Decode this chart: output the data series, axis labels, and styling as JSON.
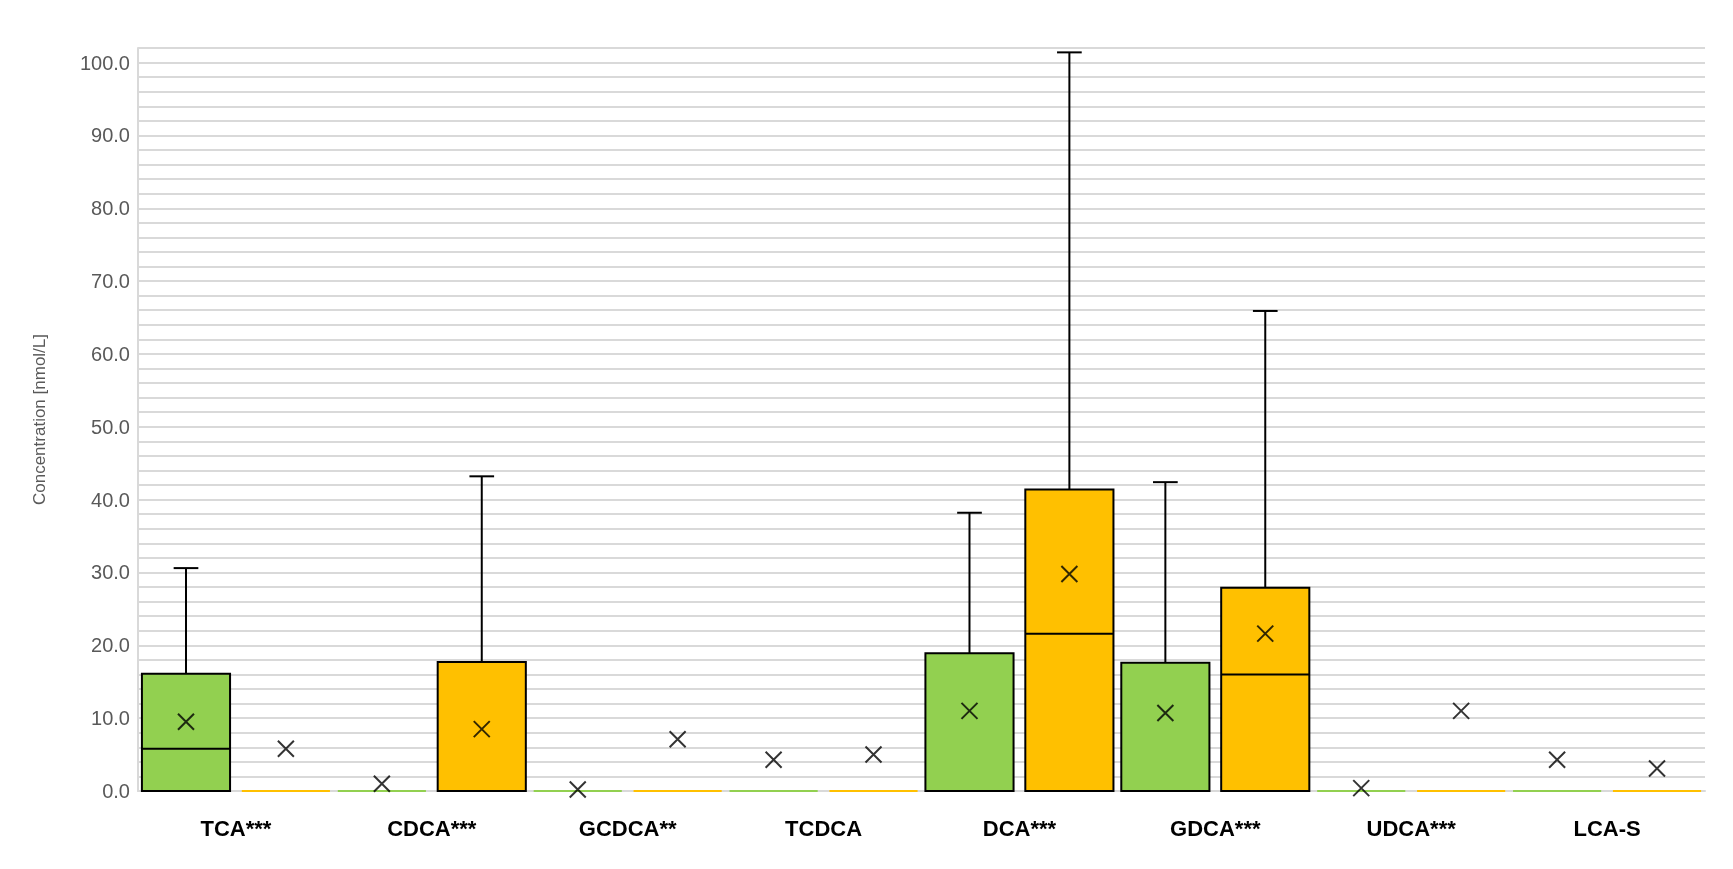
{
  "chart_data": {
    "type": "box",
    "ylabel": "Concentration [nmol/L]",
    "categories": [
      "TCA***",
      "CDCA***",
      "GCDCA**",
      "TCDCA",
      "DCA***",
      "GDCA***",
      "UDCA***",
      "LCA-S"
    ],
    "ylim": [
      0,
      102
    ],
    "yticks": [
      {
        "value": 0,
        "label": "0.0"
      },
      {
        "value": 2,
        "label": null
      },
      {
        "value": 4,
        "label": null
      },
      {
        "value": 6,
        "label": null
      },
      {
        "value": 8,
        "label": null
      },
      {
        "value": 10,
        "label": "10.0"
      },
      {
        "value": 12,
        "label": null
      },
      {
        "value": 14,
        "label": null
      },
      {
        "value": 16,
        "label": null
      },
      {
        "value": 18,
        "label": null
      },
      {
        "value": 20,
        "label": "20.0"
      },
      {
        "value": 22,
        "label": null
      },
      {
        "value": 24,
        "label": null
      },
      {
        "value": 26,
        "label": null
      },
      {
        "value": 28,
        "label": null
      },
      {
        "value": 30,
        "label": "30.0"
      },
      {
        "value": 32,
        "label": null
      },
      {
        "value": 34,
        "label": null
      },
      {
        "value": 36,
        "label": null
      },
      {
        "value": 38,
        "label": null
      },
      {
        "value": 40,
        "label": "40.0"
      },
      {
        "value": 42,
        "label": null
      },
      {
        "value": 44,
        "label": null
      },
      {
        "value": 46,
        "label": null
      },
      {
        "value": 48,
        "label": null
      },
      {
        "value": 50,
        "label": "50.0"
      },
      {
        "value": 52,
        "label": null
      },
      {
        "value": 54,
        "label": null
      },
      {
        "value": 56,
        "label": null
      },
      {
        "value": 58,
        "label": null
      },
      {
        "value": 60,
        "label": "60.0"
      },
      {
        "value": 62,
        "label": null
      },
      {
        "value": 64,
        "label": null
      },
      {
        "value": 66,
        "label": null
      },
      {
        "value": 68,
        "label": null
      },
      {
        "value": 70,
        "label": "70.0"
      },
      {
        "value": 72,
        "label": null
      },
      {
        "value": 74,
        "label": null
      },
      {
        "value": 76,
        "label": null
      },
      {
        "value": 78,
        "label": null
      },
      {
        "value": 80,
        "label": "80.0"
      },
      {
        "value": 82,
        "label": null
      },
      {
        "value": 84,
        "label": null
      },
      {
        "value": 86,
        "label": null
      },
      {
        "value": 88,
        "label": null
      },
      {
        "value": 90,
        "label": "90.0"
      },
      {
        "value": 92,
        "label": null
      },
      {
        "value": 94,
        "label": null
      },
      {
        "value": 96,
        "label": null
      },
      {
        "value": 98,
        "label": null
      },
      {
        "value": 100,
        "label": "100.0"
      },
      {
        "value": 102,
        "label": null
      }
    ],
    "grid": "y",
    "marker": "cross",
    "series": [
      {
        "color": "#92d050",
        "boxes": [
          {
            "low": 0,
            "q1": 0,
            "median": 5.8,
            "q3": 16.1,
            "high": 30.6,
            "mean": 9.5
          },
          {
            "low": 0,
            "q1": 0,
            "median": 0,
            "q3": 0,
            "high": 0,
            "mean": 1.0
          },
          {
            "low": 0,
            "q1": 0,
            "median": 0,
            "q3": 0,
            "high": 0,
            "mean": 0.2
          },
          {
            "low": 0,
            "q1": 0,
            "median": 0,
            "q3": 0,
            "high": 0,
            "mean": 4.3
          },
          {
            "low": 0,
            "q1": 0,
            "median": 0,
            "q3": 18.9,
            "high": 38.2,
            "mean": 11.0
          },
          {
            "low": 0,
            "q1": 0,
            "median": 0,
            "q3": 17.6,
            "high": 42.4,
            "mean": 10.7
          },
          {
            "low": 0,
            "q1": 0,
            "median": 0,
            "q3": 0,
            "high": 0,
            "mean": 0.4
          },
          {
            "low": 0,
            "q1": 0,
            "median": 0,
            "q3": 0,
            "high": 0,
            "mean": 4.3
          }
        ]
      },
      {
        "color": "#ffc000",
        "boxes": [
          {
            "low": 0,
            "q1": 0,
            "median": 0,
            "q3": 0,
            "high": 0,
            "mean": 5.8
          },
          {
            "low": 0,
            "q1": 0,
            "median": 0,
            "q3": 17.7,
            "high": 43.2,
            "mean": 8.5
          },
          {
            "low": 0,
            "q1": 0,
            "median": 0,
            "q3": 0,
            "high": 0,
            "mean": 7.1
          },
          {
            "low": 0,
            "q1": 0,
            "median": 0,
            "q3": 0,
            "high": 0,
            "mean": 5.0
          },
          {
            "low": 0,
            "q1": 0,
            "median": 21.6,
            "q3": 41.4,
            "high": 101.4,
            "mean": 29.8
          },
          {
            "low": 0,
            "q1": 0,
            "median": 16.0,
            "q3": 27.9,
            "high": 65.9,
            "mean": 21.6
          },
          {
            "low": 0,
            "q1": 0,
            "median": 0,
            "q3": 0,
            "high": 0,
            "mean": 11.0
          },
          {
            "low": 0,
            "q1": 0,
            "median": 0,
            "q3": 0,
            "high": 0,
            "mean": 3.1
          }
        ]
      }
    ]
  }
}
